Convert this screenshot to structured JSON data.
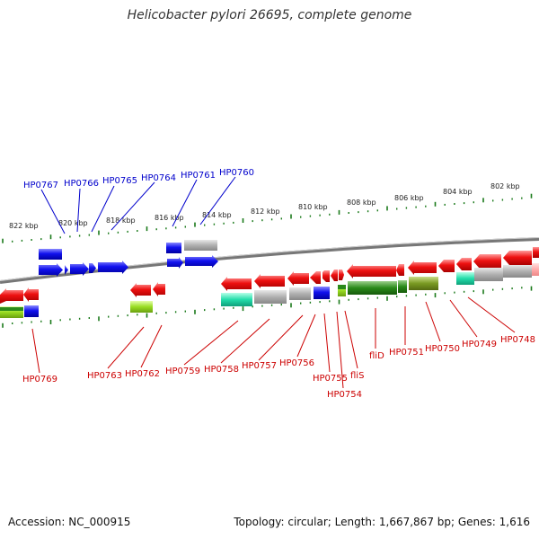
{
  "title": "Helicobacter pylori 26695, complete genome",
  "footer": {
    "accession": "Accession: NC_000915",
    "stats": "Topology: circular; Length: 1,667,867 bp; Genes: 1,616"
  },
  "colors": {
    "backbone": "#777777",
    "tick": "#1a7a1a",
    "upper_label": "#0000cc",
    "lower_label": "#cc0000",
    "red": "#ee1111",
    "blue": "#1111ee",
    "gray": "#a8a8a8",
    "green": "#2a8a1a",
    "lightgreen": "#99dd22",
    "teal": "#22ddaa",
    "olive": "#7a9a22",
    "pink": "#ffaaaa"
  },
  "scale_labels": [
    "822 kbp",
    "820 kbp",
    "818 kbp",
    "816 kbp",
    "814 kbp",
    "812 kbp",
    "810 kbp",
    "808 kbp",
    "806 kbp",
    "804 kbp",
    "802 kbp"
  ],
  "upper_labels": [
    "HP0767",
    "HP0766",
    "HP0765",
    "HP0764",
    "HP0761",
    "HP0760"
  ],
  "lower_labels": [
    "HP0769",
    "HP0763",
    "HP0762",
    "HP0759",
    "HP0758",
    "HP0757",
    "HP0756",
    "HP0755",
    "HP0754",
    "fliS",
    "fliD",
    "HP0751",
    "HP0750",
    "HP0749",
    "HP0748"
  ]
}
